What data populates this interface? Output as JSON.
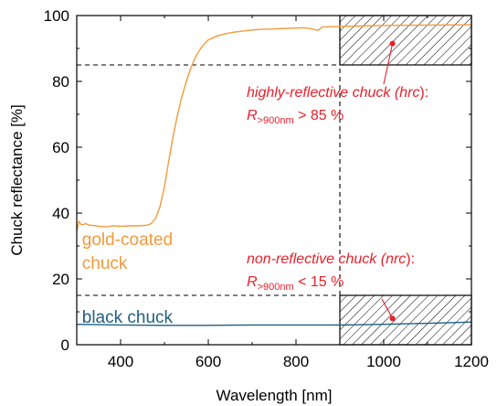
{
  "chart_data": {
    "type": "line",
    "xlabel": "Wavelength [nm]",
    "ylabel": "Chuck reflectance [%]",
    "xlim": [
      300,
      1200
    ],
    "ylim": [
      0,
      100
    ],
    "xticks": [
      "400",
      "600",
      "800",
      "1000",
      "1200"
    ],
    "xtick_values": [
      400,
      600,
      800,
      1000,
      1200
    ],
    "yticks": [
      "0",
      "20",
      "40",
      "60",
      "80",
      "100"
    ],
    "ytick_values": [
      0,
      20,
      40,
      60,
      80,
      100
    ],
    "grid": false,
    "series": [
      {
        "name": "gold-coated chuck",
        "label_lines": [
          "gold-coated",
          "chuck"
        ],
        "color": "#f39a3c",
        "x": [
          300,
          305,
          310,
          315,
          320,
          330,
          340,
          350,
          360,
          370,
          380,
          400,
          420,
          440,
          460,
          470,
          480,
          490,
          500,
          510,
          520,
          530,
          540,
          550,
          560,
          570,
          580,
          590,
          600,
          620,
          640,
          660,
          680,
          700,
          720,
          740,
          760,
          780,
          800,
          820,
          840,
          850,
          860,
          880,
          900,
          950,
          1000,
          1100,
          1200
        ],
        "y": [
          34.5,
          37.5,
          36.5,
          36.5,
          36.8,
          36.3,
          36.2,
          36.0,
          35.9,
          35.8,
          36.1,
          36.0,
          36.1,
          36.1,
          36.3,
          36.8,
          38.5,
          42.0,
          48.0,
          56.0,
          63.5,
          70.0,
          75.5,
          80.0,
          84.0,
          87.2,
          89.5,
          91.2,
          92.6,
          93.8,
          94.5,
          95.0,
          95.3,
          95.6,
          95.8,
          95.9,
          96.0,
          96.1,
          96.2,
          96.3,
          95.8,
          95.5,
          96.5,
          96.6,
          96.7,
          96.8,
          97.0,
          97.1,
          97.2
        ]
      },
      {
        "name": "black chuck",
        "label_lines": [
          "black chuck"
        ],
        "color": "#1f5f80",
        "x": [
          300,
          400,
          500,
          600,
          700,
          800,
          900,
          1000,
          1100,
          1200
        ],
        "y": [
          6.2,
          6.0,
          5.9,
          5.9,
          6.0,
          6.0,
          6.0,
          6.2,
          6.5,
          6.9
        ]
      }
    ],
    "reference_lines": [
      {
        "axis": "y",
        "value": 85,
        "x_range": [
          300,
          1200
        ],
        "style": "dashed"
      },
      {
        "axis": "y",
        "value": 15,
        "x_range": [
          300,
          1200
        ],
        "style": "dashed"
      },
      {
        "axis": "x",
        "value": 900,
        "y_range": [
          15,
          100
        ],
        "style": "dashed"
      }
    ],
    "hatched_regions": [
      {
        "x_range": [
          900,
          1200
        ],
        "y_range": [
          85,
          100
        ]
      },
      {
        "x_range": [
          900,
          1200
        ],
        "y_range": [
          0,
          15
        ]
      }
    ],
    "annotations": [
      {
        "id": "hrc",
        "line1": [
          "highly-reflective chuck (",
          "hrc",
          "):"
        ],
        "line2": {
          "symbol": "R",
          "subscript": ">900nm",
          "relation": " > 85 %"
        },
        "point": [
          1020,
          91.5
        ],
        "text_anchor": [
          920,
          81
        ],
        "color": "#e8202a"
      },
      {
        "id": "nrc",
        "line1": [
          "non-reflective chuck (",
          "nrc",
          "):"
        ],
        "line2": {
          "symbol": "R",
          "subscript": ">900nm",
          "relation": " < 15 %"
        },
        "point": [
          1020,
          8
        ],
        "text_anchor": [
          920,
          17
        ],
        "color": "#e8202a"
      }
    ]
  }
}
